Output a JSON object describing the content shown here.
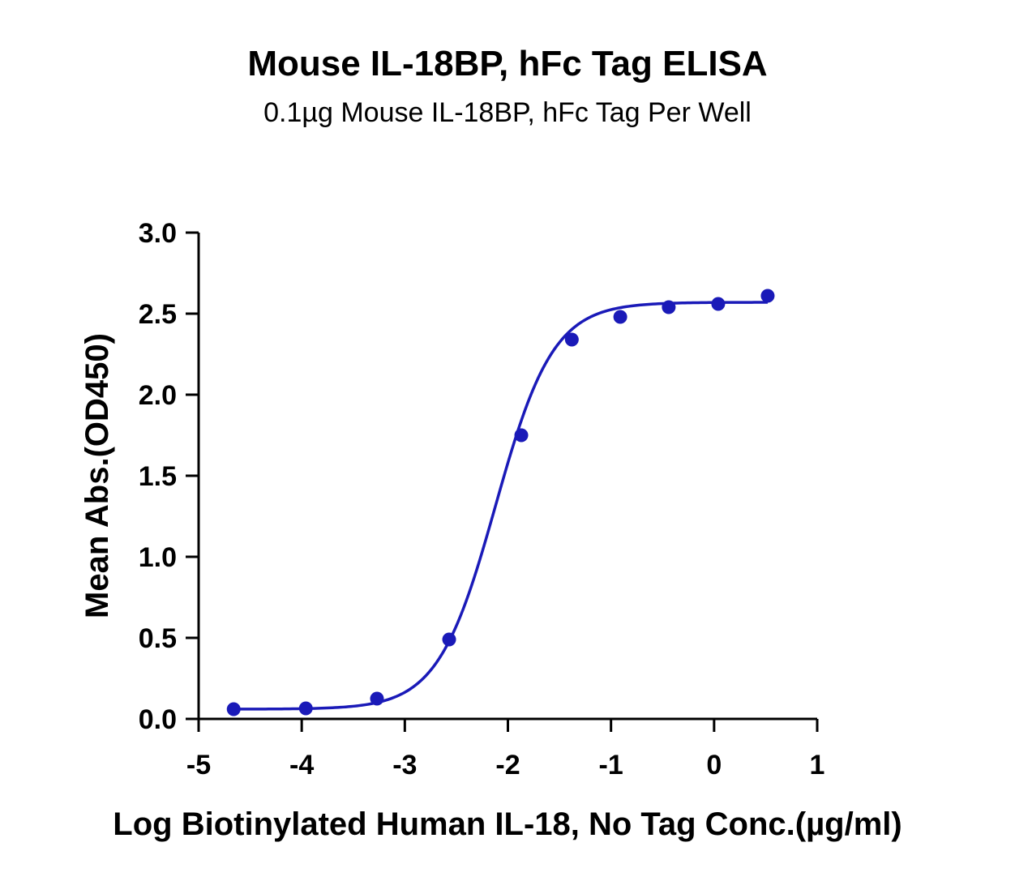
{
  "chart_data": {
    "type": "scatter",
    "title": "Mouse IL-18BP, hFc Tag ELISA",
    "subtitle": "0.1µg Mouse IL-18BP, hFc Tag Per Well",
    "xlabel": "Log Biotinylated Human IL-18, No Tag Conc.(µg/ml)",
    "ylabel": "Mean Abs.(OD450)",
    "xlim": [
      -5,
      1
    ],
    "ylim": [
      0,
      3.0
    ],
    "x_ticks": [
      "-5",
      "-4",
      "-3",
      "-2",
      "-1",
      "0",
      "1"
    ],
    "y_ticks": [
      "0.0",
      "0.5",
      "1.0",
      "1.5",
      "2.0",
      "2.5",
      "3.0"
    ],
    "grid": false,
    "series": [
      {
        "color": "#1a1ab8",
        "x": [
          -4.66,
          -3.96,
          -3.27,
          -2.57,
          -1.87,
          -1.38,
          -0.91,
          -0.44,
          0.04,
          0.52
        ],
        "y": [
          0.06,
          0.065,
          0.125,
          0.49,
          1.75,
          2.34,
          2.48,
          2.54,
          2.56,
          2.61
        ]
      }
    ],
    "fit_curve": {
      "model": "4PL",
      "bottom": 0.06,
      "top": 2.57,
      "logEC50": -2.12,
      "hill": 1.55
    }
  }
}
